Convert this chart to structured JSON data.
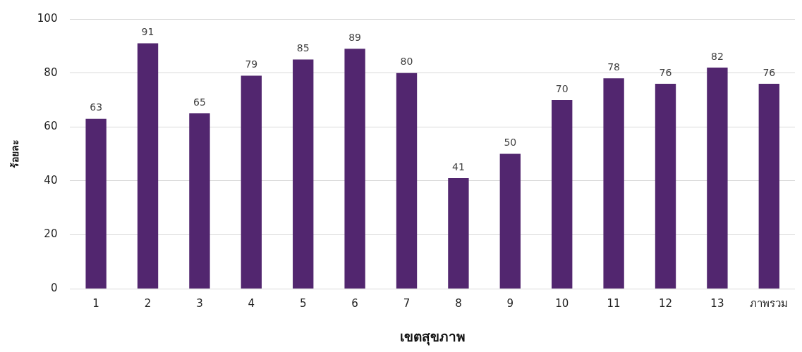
{
  "chart_data": {
    "type": "bar",
    "xlabel": "เขตสุขภาพ",
    "ylabel": "ร้อยละ",
    "categories": [
      "1",
      "2",
      "3",
      "4",
      "5",
      "6",
      "7",
      "8",
      "9",
      "10",
      "11",
      "12",
      "13",
      "ภาพรวม"
    ],
    "values": [
      63,
      91,
      65,
      79,
      85,
      89,
      80,
      41,
      50,
      70,
      78,
      76,
      82,
      76
    ],
    "color": "#52266f",
    "ylim": [
      0,
      100
    ],
    "yticks": [
      0,
      20,
      40,
      60,
      80,
      100
    ],
    "grid": "y",
    "data_labels": true,
    "legend": false
  }
}
